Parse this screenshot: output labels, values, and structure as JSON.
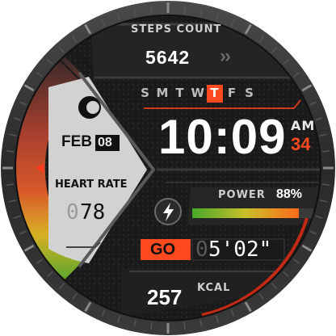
{
  "steps": {
    "label": "STEPS COUNT",
    "value": "5642",
    "arrows": "››"
  },
  "weekdays": [
    {
      "letter": "S",
      "active": false
    },
    {
      "letter": "M",
      "active": false
    },
    {
      "letter": "T",
      "active": false
    },
    {
      "letter": "W",
      "active": false
    },
    {
      "letter": "T",
      "active": true
    },
    {
      "letter": "F",
      "active": false
    },
    {
      "letter": "S",
      "active": false
    }
  ],
  "time": {
    "value": "10:09",
    "ampm": "AM",
    "seconds": "34"
  },
  "date": {
    "month": "FEB",
    "day": "08"
  },
  "heart_rate": {
    "label": "HEART RATE",
    "leading_digit": "0",
    "value": "78"
  },
  "power": {
    "label": "POWER",
    "percent": "88%",
    "level": 0.88
  },
  "activity": {
    "go_label": "GO",
    "leading_digit": "0",
    "pace": "5'02\""
  },
  "calories": {
    "value": "257",
    "unit": "KCAL"
  },
  "icons": {
    "moon": "moon-phase-icon",
    "bolt": "lightning-bolt-icon"
  },
  "colors": {
    "accent": "#ff4a1f",
    "panel": "#cfcfcf",
    "bg": "#1d1d1d"
  }
}
